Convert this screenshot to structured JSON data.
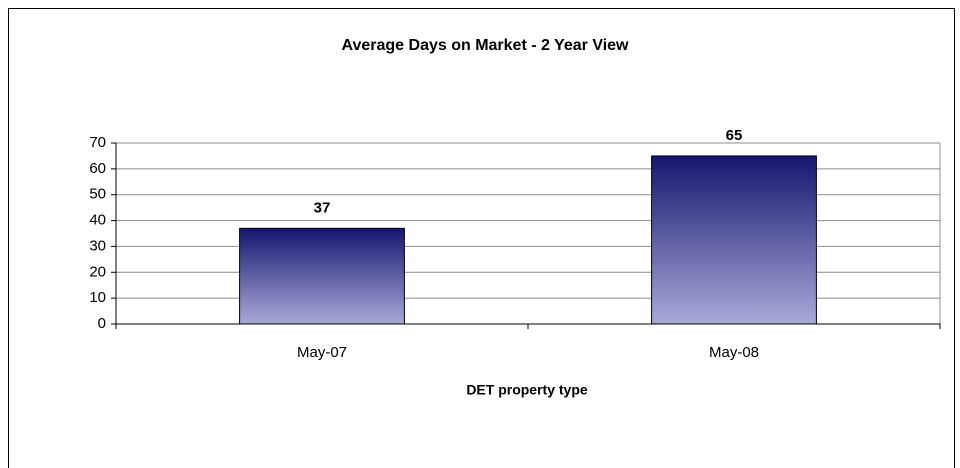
{
  "chart_data": {
    "type": "bar",
    "title": "Average Days on Market - 2 Year View",
    "x_label": "DET property type",
    "categories": [
      "May-07",
      "May-08"
    ],
    "values": [
      37,
      65
    ],
    "gradient": [
      "#16166f",
      "#a9a9d9"
    ],
    "ylim": [
      0,
      70
    ],
    "yticks": [
      0,
      10,
      20,
      30,
      40,
      50,
      60,
      70
    ],
    "grid": true
  }
}
